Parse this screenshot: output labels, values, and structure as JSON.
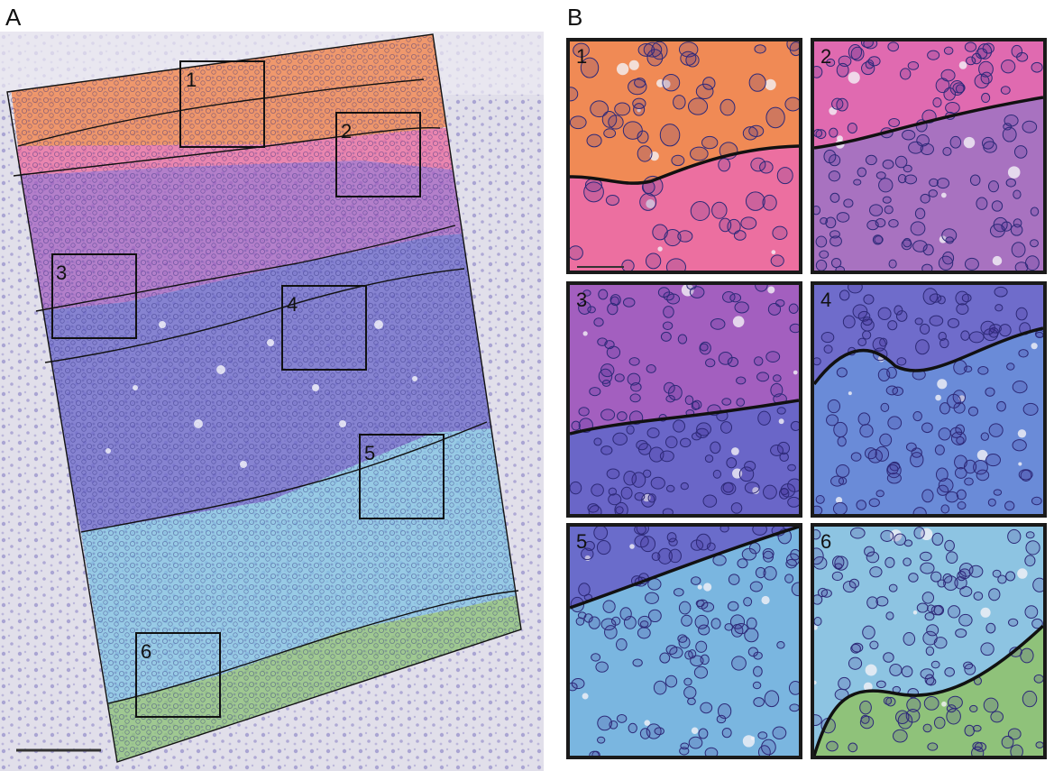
{
  "figure": {
    "panel_a_label": "A",
    "panel_b_label": "B",
    "region_boxes": [
      {
        "label": "1"
      },
      {
        "label": "2"
      },
      {
        "label": "3"
      },
      {
        "label": "4"
      },
      {
        "label": "5"
      },
      {
        "label": "6"
      }
    ],
    "zoom_tiles": [
      {
        "label": "1",
        "colors": [
          "#f08a55",
          "#ec6fa0"
        ],
        "has_scale_bar": true
      },
      {
        "label": "2",
        "colors": [
          "#e06ab0",
          "#a872c0"
        ],
        "has_scale_bar": false
      },
      {
        "label": "3",
        "colors": [
          "#a35fbf",
          "#6a66c8"
        ],
        "has_scale_bar": false
      },
      {
        "label": "4",
        "colors": [
          "#6f6ccb",
          "#6a8bd8"
        ],
        "has_scale_bar": false
      },
      {
        "label": "5",
        "colors": [
          "#6a6ccb",
          "#7ab6e0"
        ],
        "has_scale_bar": false
      },
      {
        "label": "6",
        "colors": [
          "#8dc4e2",
          "#8fc27a"
        ],
        "has_scale_bar": false
      }
    ],
    "layer_colors": {
      "background_tissue": "#d9d6e8",
      "layer_1": "#f08a55",
      "layer_2": "#ec6fa0",
      "layer_3": "#a35fbf",
      "layer_4": "#6f6ccb",
      "layer_5": "#7ec3e3",
      "layer_6": "#8fc27a"
    }
  }
}
